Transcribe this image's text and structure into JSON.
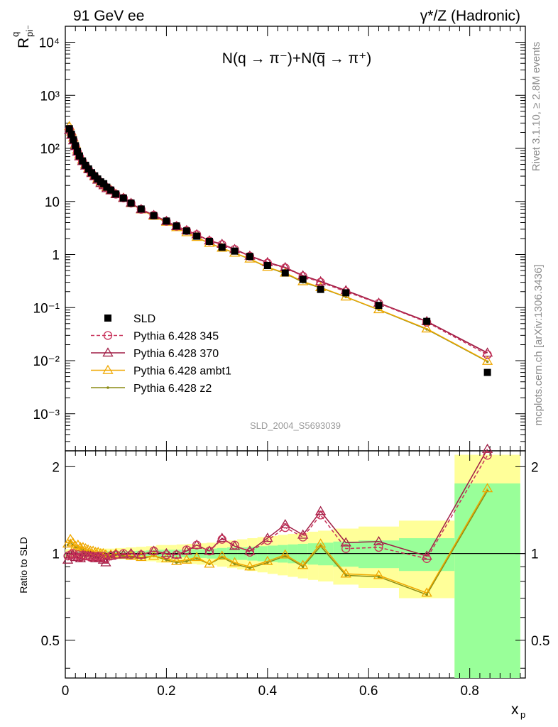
{
  "header": {
    "left": "91 GeV ee",
    "right": "γ*/Z (Hadronic)"
  },
  "plot_label": "N(q → π⁻)+N(q̅ → π⁺)",
  "side_text": {
    "rivet": "Rivet 3.1.10, ≥ 2.8M events",
    "source": "mcplots.cern.ch [arXiv:1306.3436]"
  },
  "analysis_id": "SLD_2004_S5693039",
  "chart_data": [
    {
      "panel": "main",
      "type": "scatter",
      "ylabel_main": "R",
      "ylabel_super": "q",
      "ylabel_sub": "pi⁻",
      "log_y": true,
      "xlim": [
        0,
        0.91
      ],
      "ylim": [
        0.0002,
        20000
      ],
      "ytick_labels": [
        "10⁻³",
        "10⁻²",
        "10⁻¹",
        "1",
        "10",
        "10²",
        "10³",
        "10⁴"
      ],
      "xtick_labels": [
        "0",
        "0.2",
        "0.4",
        "0.6",
        "0.8"
      ],
      "legend_position": "bottom-left",
      "x": [
        0.008,
        0.012,
        0.016,
        0.02,
        0.024,
        0.028,
        0.034,
        0.04,
        0.046,
        0.052,
        0.058,
        0.064,
        0.07,
        0.076,
        0.082,
        0.09,
        0.1,
        0.115,
        0.13,
        0.15,
        0.175,
        0.2,
        0.22,
        0.24,
        0.26,
        0.285,
        0.31,
        0.335,
        0.365,
        0.4,
        0.435,
        0.47,
        0.505,
        0.555,
        0.62,
        0.715,
        0.835
      ],
      "series": [
        {
          "name": "SLD",
          "color": "#000000",
          "marker": "square",
          "values": [
            235,
            185,
            145,
            112,
            88,
            72,
            58,
            48,
            41,
            34.8,
            30.4,
            26.5,
            23.4,
            21.6,
            18.6,
            16.4,
            13.8,
            11.6,
            9.3,
            7.2,
            5.4,
            4.27,
            3.45,
            2.78,
            2.22,
            1.77,
            1.37,
            1.16,
            0.92,
            0.62,
            0.45,
            0.34,
            0.22,
            0.19,
            0.11,
            0.055,
            0.006
          ]
        },
        {
          "name": "Pythia 6.428 345",
          "color": "#c8325a",
          "marker": "circle",
          "values": [
            230,
            182,
            143,
            110,
            86,
            70,
            57,
            47,
            40,
            34,
            29.8,
            26,
            23,
            20.6,
            18.3,
            16.3,
            13.7,
            11.6,
            9.3,
            7.1,
            5.5,
            4.23,
            3.42,
            2.83,
            2.38,
            1.8,
            1.54,
            1.25,
            0.93,
            0.69,
            0.56,
            0.39,
            0.3,
            0.2,
            0.12,
            0.053,
            0.013
          ]
        },
        {
          "name": "Pythia 6.428 370",
          "color": "#a01e46",
          "marker": "triangle",
          "values": [
            220,
            178,
            140,
            109,
            86,
            70,
            57,
            47,
            40,
            34,
            29.5,
            25.5,
            22,
            20,
            17.6,
            16,
            13.6,
            11.5,
            9.3,
            7.1,
            5.5,
            4.25,
            3.4,
            2.85,
            2.38,
            1.82,
            1.57,
            1.25,
            0.94,
            0.71,
            0.57,
            0.4,
            0.31,
            0.21,
            0.122,
            0.055,
            0.014
          ]
        },
        {
          "name": "Pythia 6.428 ambt1",
          "color": "#f0a800",
          "marker": "triangle",
          "values": [
            260,
            205,
            158,
            120,
            94,
            76,
            61,
            50,
            42,
            35.5,
            30.8,
            26.8,
            23.5,
            21,
            18.5,
            16.4,
            13.8,
            11.6,
            9.2,
            7,
            5.3,
            4.1,
            3.25,
            2.6,
            2.12,
            1.64,
            1.33,
            1.07,
            0.83,
            0.58,
            0.45,
            0.31,
            0.24,
            0.16,
            0.092,
            0.04,
            0.0098
          ]
        },
        {
          "name": "Pythia 6.428 z2",
          "color": "#8c8c14",
          "marker": "dot",
          "values": [
            255,
            200,
            155,
            118,
            92,
            75,
            60,
            49,
            41.5,
            35,
            30.5,
            26.5,
            23.2,
            20.8,
            18.3,
            16.3,
            13.7,
            11.5,
            9.1,
            6.95,
            5.25,
            4.05,
            3.22,
            2.58,
            2.1,
            1.62,
            1.31,
            1.06,
            0.82,
            0.57,
            0.44,
            0.3,
            0.235,
            0.158,
            0.091,
            0.039,
            0.0096
          ]
        }
      ]
    },
    {
      "panel": "ratio",
      "type": "line",
      "ylabel": "Ratio to SLD",
      "xlabel": "x",
      "xlabel_sub": "p",
      "ylim": [
        0.37,
        2.27
      ],
      "ytick_labels": [
        "0.5",
        "1",
        "2"
      ],
      "band_edges": [
        0,
        0.02,
        0.04,
        0.06,
        0.08,
        0.1,
        0.12,
        0.14,
        0.16,
        0.18,
        0.2,
        0.22,
        0.24,
        0.26,
        0.28,
        0.3,
        0.32,
        0.34,
        0.36,
        0.38,
        0.4,
        0.42,
        0.44,
        0.46,
        0.48,
        0.5,
        0.53,
        0.58,
        0.66,
        0.77,
        0.9
      ],
      "band_inner": [
        0.015,
        0.015,
        0.015,
        0.015,
        0.018,
        0.018,
        0.02,
        0.022,
        0.025,
        0.03,
        0.03,
        0.03,
        0.035,
        0.035,
        0.04,
        0.045,
        0.05,
        0.05,
        0.055,
        0.06,
        0.065,
        0.07,
        0.075,
        0.08,
        0.085,
        0.09,
        0.1,
        0.11,
        0.13,
        0.75
      ],
      "band_outer": [
        0.035,
        0.035,
        0.035,
        0.04,
        0.04,
        0.045,
        0.05,
        0.055,
        0.06,
        0.07,
        0.07,
        0.075,
        0.08,
        0.085,
        0.09,
        0.1,
        0.11,
        0.12,
        0.13,
        0.14,
        0.15,
        0.16,
        0.17,
        0.18,
        0.19,
        0.2,
        0.22,
        0.24,
        0.3,
        1.2
      ],
      "x": [
        0.005,
        0.01,
        0.015,
        0.02,
        0.025,
        0.03,
        0.035,
        0.04,
        0.045,
        0.05,
        0.055,
        0.06,
        0.065,
        0.07,
        0.075,
        0.08,
        0.09,
        0.1,
        0.115,
        0.13,
        0.15,
        0.175,
        0.2,
        0.22,
        0.24,
        0.26,
        0.285,
        0.31,
        0.335,
        0.365,
        0.4,
        0.435,
        0.47,
        0.505,
        0.555,
        0.62,
        0.715,
        0.835
      ],
      "series": [
        {
          "name": "Pythia 6.428 345",
          "color": "#c8325a",
          "dashed": true,
          "values": [
            0.98,
            0.99,
            1.0,
            0.98,
            0.99,
            0.97,
            0.99,
            0.98,
            0.98,
            0.97,
            0.98,
            0.97,
            0.98,
            0.97,
            0.98,
            0.96,
            0.98,
            0.99,
            1.0,
            0.99,
            0.99,
            1.02,
            0.99,
            0.99,
            1.03,
            1.07,
            1.02,
            1.12,
            1.07,
            1.01,
            1.11,
            1.23,
            1.14,
            1.36,
            1.04,
            1.05,
            0.96,
            2.19
          ]
        },
        {
          "name": "Pythia 6.428 370",
          "color": "#a01e46",
          "dashed": false,
          "values": [
            0.95,
            0.99,
            0.99,
            0.97,
            0.97,
            0.96,
            0.98,
            0.98,
            0.98,
            0.98,
            0.97,
            0.96,
            0.97,
            0.96,
            0.95,
            0.93,
            0.98,
            0.99,
            0.99,
            1.0,
            0.99,
            1.02,
            1.0,
            0.99,
            1.02,
            1.07,
            1.02,
            1.13,
            1.06,
            1.02,
            1.13,
            1.26,
            1.16,
            1.4,
            1.09,
            1.1,
            0.98,
            2.3
          ]
        },
        {
          "name": "Pythia 6.428 ambt1",
          "color": "#f0a800",
          "dashed": false,
          "values": [
            1.08,
            1.12,
            1.09,
            1.06,
            1.07,
            1.05,
            1.05,
            1.04,
            1.03,
            1.02,
            1.02,
            1.01,
            1.01,
            1.0,
            1.0,
            0.99,
            0.99,
            1.0,
            0.99,
            0.98,
            0.97,
            0.98,
            0.96,
            0.94,
            0.95,
            0.97,
            0.92,
            0.98,
            0.93,
            0.9,
            0.94,
            0.99,
            0.91,
            1.08,
            0.85,
            0.84,
            0.73,
            1.68
          ]
        },
        {
          "name": "Pythia 6.428 z2",
          "color": "#8c8c14",
          "dashed": false,
          "values": [
            1.07,
            1.1,
            1.07,
            1.05,
            1.05,
            1.04,
            1.03,
            1.02,
            1.02,
            1.01,
            1.01,
            1.0,
            1.0,
            0.99,
            0.99,
            0.98,
            0.98,
            0.99,
            0.98,
            0.97,
            0.96,
            0.98,
            0.95,
            0.93,
            0.94,
            0.96,
            0.92,
            0.97,
            0.92,
            0.89,
            0.93,
            0.98,
            0.9,
            1.06,
            0.84,
            0.83,
            0.72,
            1.65
          ]
        }
      ]
    }
  ]
}
